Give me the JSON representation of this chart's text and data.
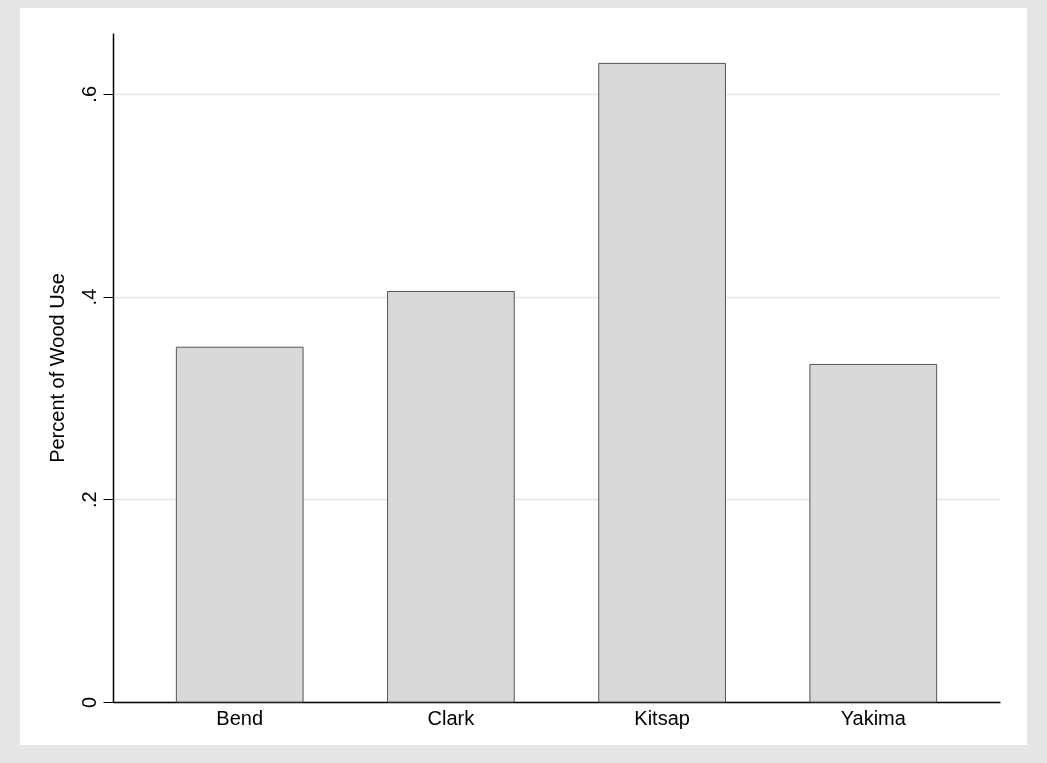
{
  "chart_data": {
    "type": "bar",
    "ylabel": "Percent of Wood Use",
    "categories": [
      "Bend",
      "Clark",
      "Kitsap",
      "Yakima"
    ],
    "values": [
      0.35,
      0.405,
      0.63,
      0.333
    ],
    "color": "#d9d9d9",
    "ylim": [
      0,
      0.66
    ],
    "yticks": [
      0,
      {
        "value": 0.2,
        "label": ".2"
      },
      {
        "value": 0.4,
        "label": ".4"
      },
      {
        "value": 0.6,
        "label": ".6"
      }
    ],
    "grid": "y"
  }
}
